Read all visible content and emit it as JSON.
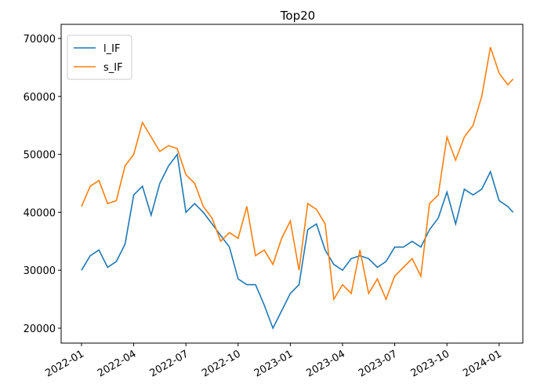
{
  "chart_data": {
    "type": "line",
    "title": "Top20",
    "x": [
      0,
      0.5,
      1,
      1.5,
      2,
      2.5,
      3,
      3.5,
      4,
      4.5,
      5,
      5.5,
      6,
      6.5,
      7,
      7.5,
      8,
      8.5,
      9,
      9.5,
      10,
      10.5,
      11,
      11.5,
      12,
      12.5,
      13,
      13.5,
      14,
      14.5,
      15,
      15.5,
      16,
      16.5,
      17,
      17.5,
      18,
      18.5,
      19,
      19.5,
      20,
      20.5,
      21,
      21.5,
      22,
      22.5,
      23,
      23.5,
      24,
      24.5,
      24.8
    ],
    "series": [
      {
        "name": "l_IF",
        "color": "#1f77b4",
        "values": [
          30000,
          32500,
          33500,
          30500,
          31500,
          34500,
          43000,
          44500,
          39500,
          45000,
          48000,
          50000,
          40000,
          41500,
          40000,
          38000,
          36000,
          34000,
          28500,
          27500,
          27500,
          24000,
          20000,
          23000,
          26000,
          27500,
          37000,
          38000,
          33500,
          31000,
          30000,
          32000,
          32500,
          32000,
          30500,
          31500,
          34000,
          34000,
          35000,
          34000,
          37000,
          39000,
          43500,
          38000,
          44000,
          43000,
          44000,
          47000,
          42000,
          41000,
          40000
        ]
      },
      {
        "name": "s_IF",
        "color": "#ff7f0e",
        "values": [
          41000,
          44500,
          45500,
          41500,
          42000,
          48000,
          50000,
          55500,
          53000,
          50500,
          51500,
          51000,
          46500,
          45000,
          41000,
          39000,
          35000,
          36500,
          35500,
          41000,
          32500,
          33500,
          31000,
          35500,
          38500,
          30000,
          41500,
          40500,
          38000,
          25000,
          27500,
          26000,
          33500,
          26000,
          28500,
          25000,
          29000,
          30500,
          32000,
          29000,
          41500,
          43000,
          53000,
          49000,
          53000,
          55000,
          60000,
          68500,
          64000,
          62000,
          63000
        ]
      }
    ],
    "xlim": [
      -1.17,
      25.36
    ],
    "xticks": [
      {
        "value": 0,
        "label": "2022-01"
      },
      {
        "value": 3,
        "label": "2022-04"
      },
      {
        "value": 6,
        "label": "2022-07"
      },
      {
        "value": 9,
        "label": "2022-10"
      },
      {
        "value": 12,
        "label": "2023-01"
      },
      {
        "value": 15,
        "label": "2023-04"
      },
      {
        "value": 18,
        "label": "2023-07"
      },
      {
        "value": 21,
        "label": "2023-10"
      },
      {
        "value": 24,
        "label": "2024-01"
      }
    ],
    "ylim": [
      17425,
      72440
    ],
    "yticks": [
      20000,
      30000,
      40000,
      50000,
      60000,
      70000
    ],
    "legend": "upper left"
  }
}
